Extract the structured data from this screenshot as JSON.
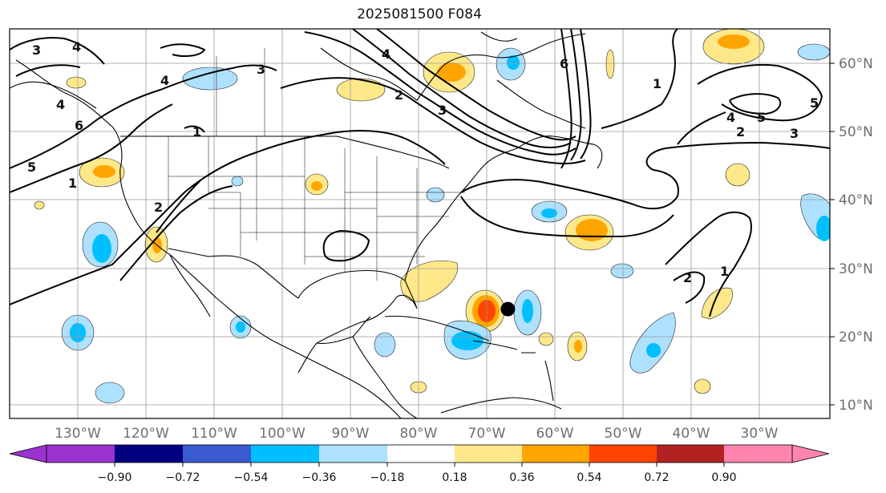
{
  "title": "2025081500 F084",
  "map": {
    "lon_range": [
      -142,
      -21
    ],
    "lat_range": [
      8,
      65
    ],
    "lat_labels": [
      "60°N",
      "50°N",
      "40°N",
      "30°N",
      "20°N",
      "10°N"
    ],
    "lon_labels": [
      "130°W",
      "120°W",
      "110°W",
      "100°W",
      "90°W",
      "80°W",
      "70°W",
      "60°W",
      "50°W",
      "40°W",
      "30°W"
    ],
    "storm_marker": {
      "lon": -68.5,
      "lat": 24.0
    }
  },
  "colorbar": {
    "ticks": [
      "−0.90",
      "−0.72",
      "−0.54",
      "−0.36",
      "−0.18",
      "0.18",
      "0.36",
      "0.54",
      "0.72",
      "0.90"
    ],
    "colors": [
      "#9a32cd",
      "#000080",
      "#3a5bd0",
      "#00bfff",
      "#aee0ff",
      "#ffffff",
      "#ffe88a",
      "#ffa500",
      "#ff4500",
      "#b22222",
      "#ff85b0"
    ]
  },
  "contour_labels": [
    "1",
    "2",
    "3",
    "4",
    "5",
    "6"
  ]
}
